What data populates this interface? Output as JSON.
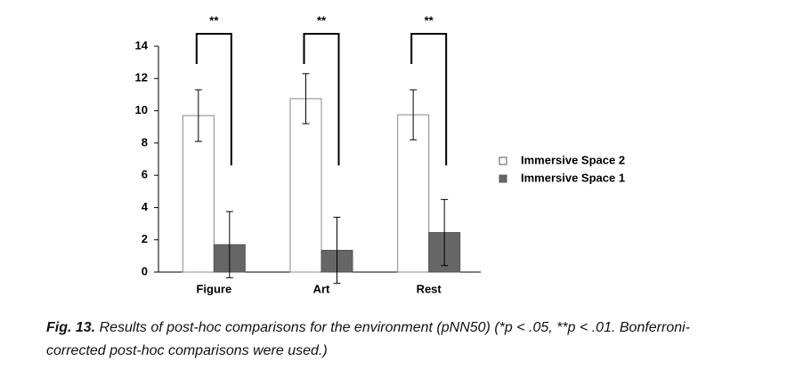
{
  "chart_data": {
    "type": "bar",
    "categories": [
      "Figure",
      "Art",
      "Rest"
    ],
    "series": [
      {
        "name": "Immersive Space 2",
        "color": "#ffffff",
        "values": [
          9.7,
          10.75,
          9.75
        ],
        "errors": [
          1.6,
          1.55,
          1.55
        ]
      },
      {
        "name": "Immersive Space 1",
        "color": "#666666",
        "values": [
          1.7,
          1.35,
          2.45
        ],
        "errors": [
          2.05,
          2.05,
          2.05
        ]
      }
    ],
    "ylim": [
      0,
      14
    ],
    "yticks": [
      0,
      2,
      4,
      6,
      8,
      10,
      12,
      14
    ],
    "grid": false,
    "annotations": [
      "**",
      "**",
      "**"
    ],
    "legend": "right"
  },
  "caption": {
    "label": "Fig. 13.",
    "lines": [
      "Results of post-hoc comparisons for the environment (pNN50) (*p < .05, **p < .01. Bonferroni-",
      "corrected post-hoc comparisons were used.)"
    ]
  }
}
